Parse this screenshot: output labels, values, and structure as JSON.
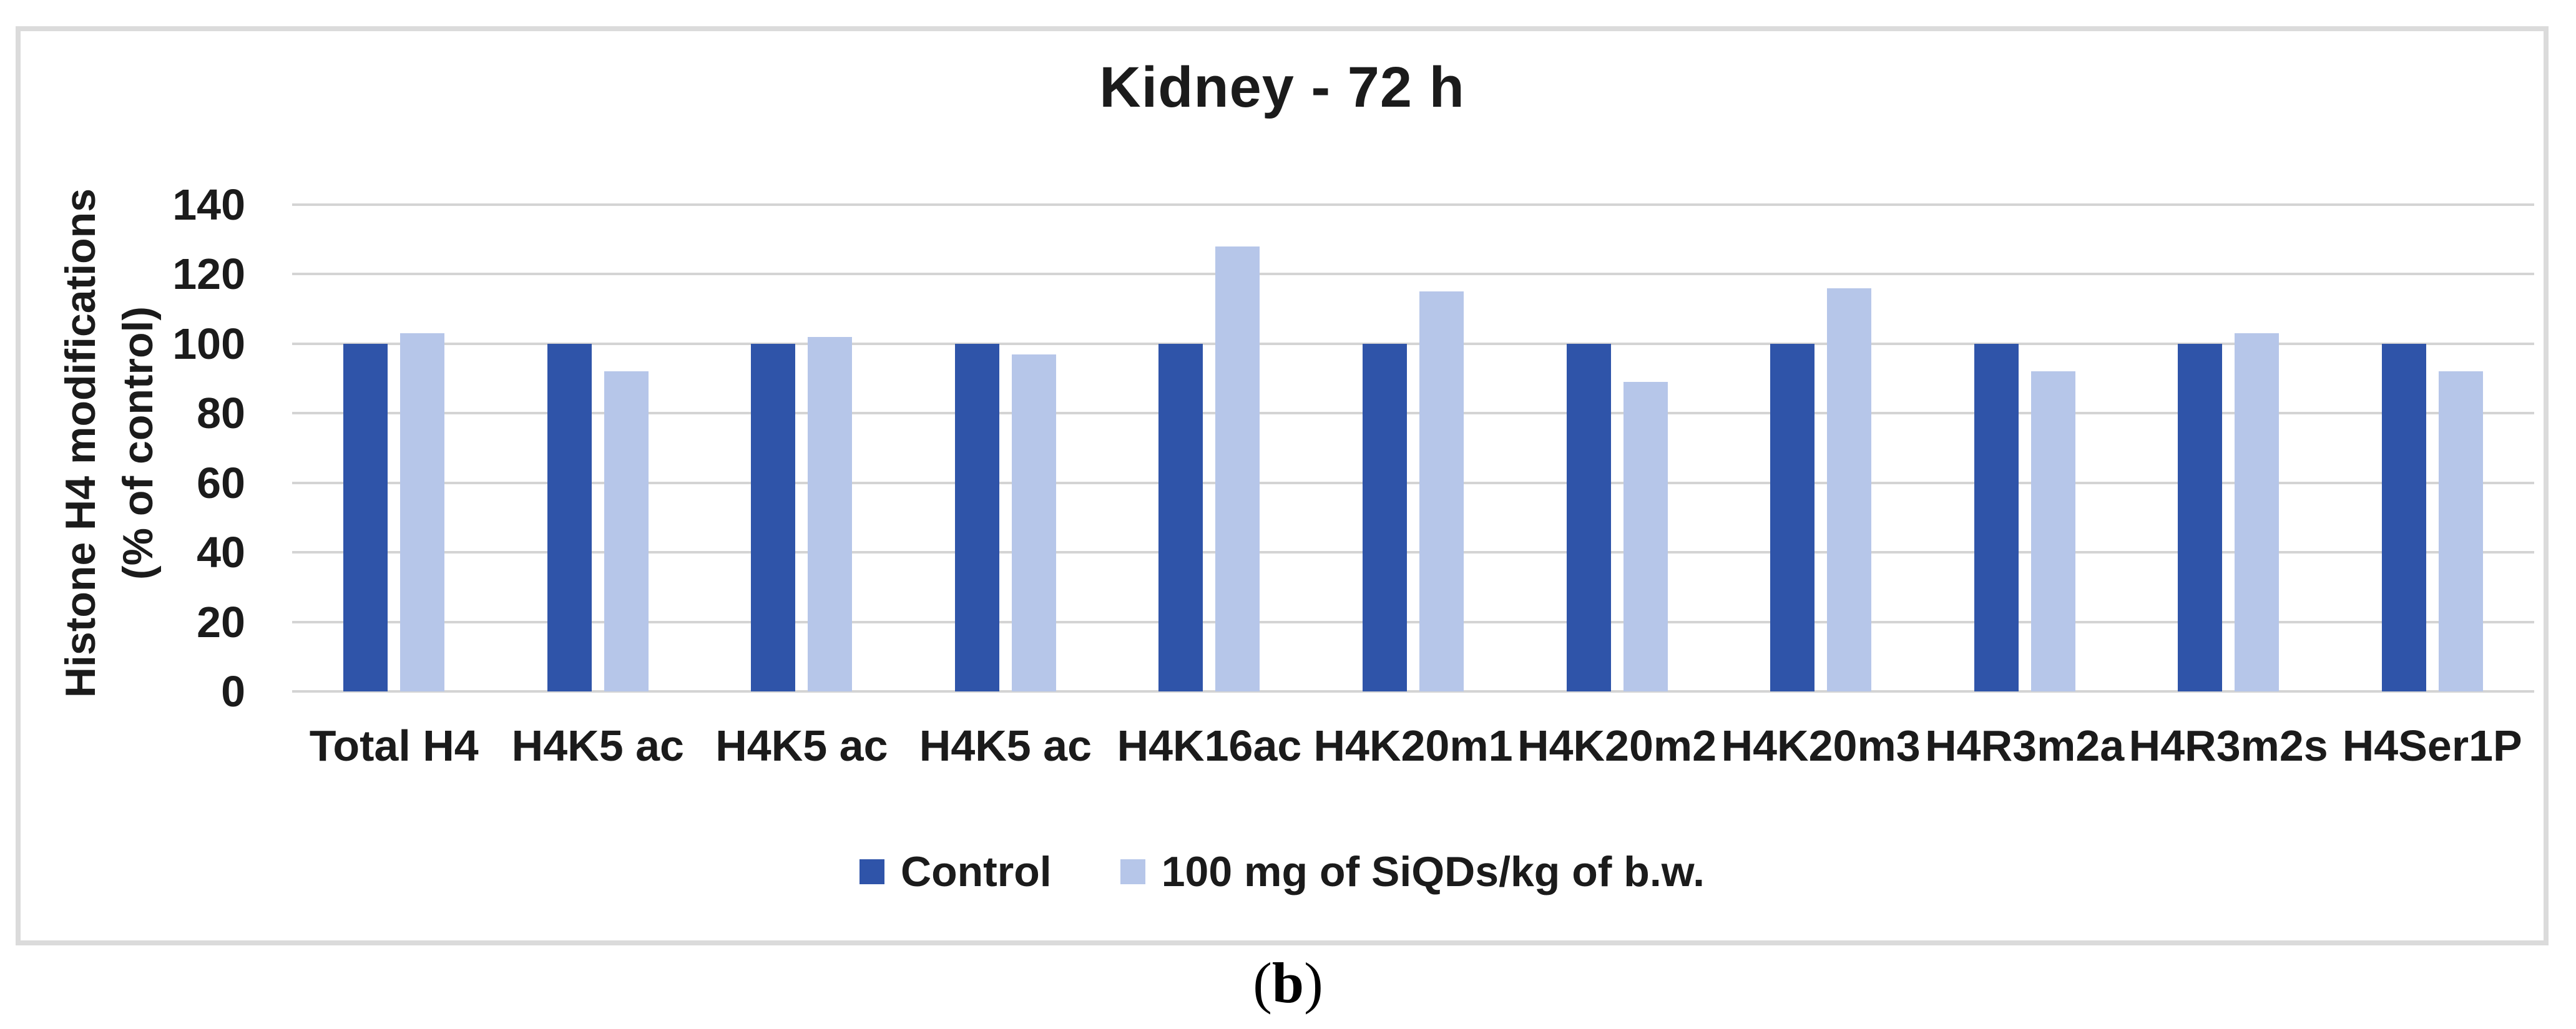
{
  "figure": {
    "caption_open": "(",
    "caption_letter": "b",
    "caption_close": ")"
  },
  "chart_data": {
    "type": "bar",
    "title": "Kidney - 72 h",
    "categories": [
      "Total H4",
      "H4K5 ac",
      "H4K5 ac",
      "H4K5 ac",
      "H4K16ac",
      "H4K20m1",
      "H4K20m2",
      "H4K20m3",
      "H4R3m2a",
      "H4R3m2s",
      "H4Ser1P"
    ],
    "series": [
      {
        "name": "Control",
        "color": "#2f54a9",
        "values": [
          100,
          100,
          100,
          100,
          100,
          100,
          100,
          100,
          100,
          100,
          100
        ]
      },
      {
        "name": "100 mg of SiQDs/kg of b.w.",
        "color": "#b6c6e9",
        "values": [
          103,
          92,
          102,
          97,
          128,
          115,
          89,
          116,
          92,
          103,
          92
        ]
      }
    ],
    "ylabel_line1": "Histone H4 modifications",
    "ylabel_line2": "(% of control)",
    "yticks": [
      0,
      20,
      40,
      60,
      80,
      100,
      120,
      140
    ],
    "ylim": [
      0,
      140
    ],
    "grid": true,
    "legend_position": "bottom"
  },
  "colors": {
    "gridline": "#d4d4d4",
    "frame_border": "#dbdbdb",
    "text": "#1b1b1b"
  }
}
